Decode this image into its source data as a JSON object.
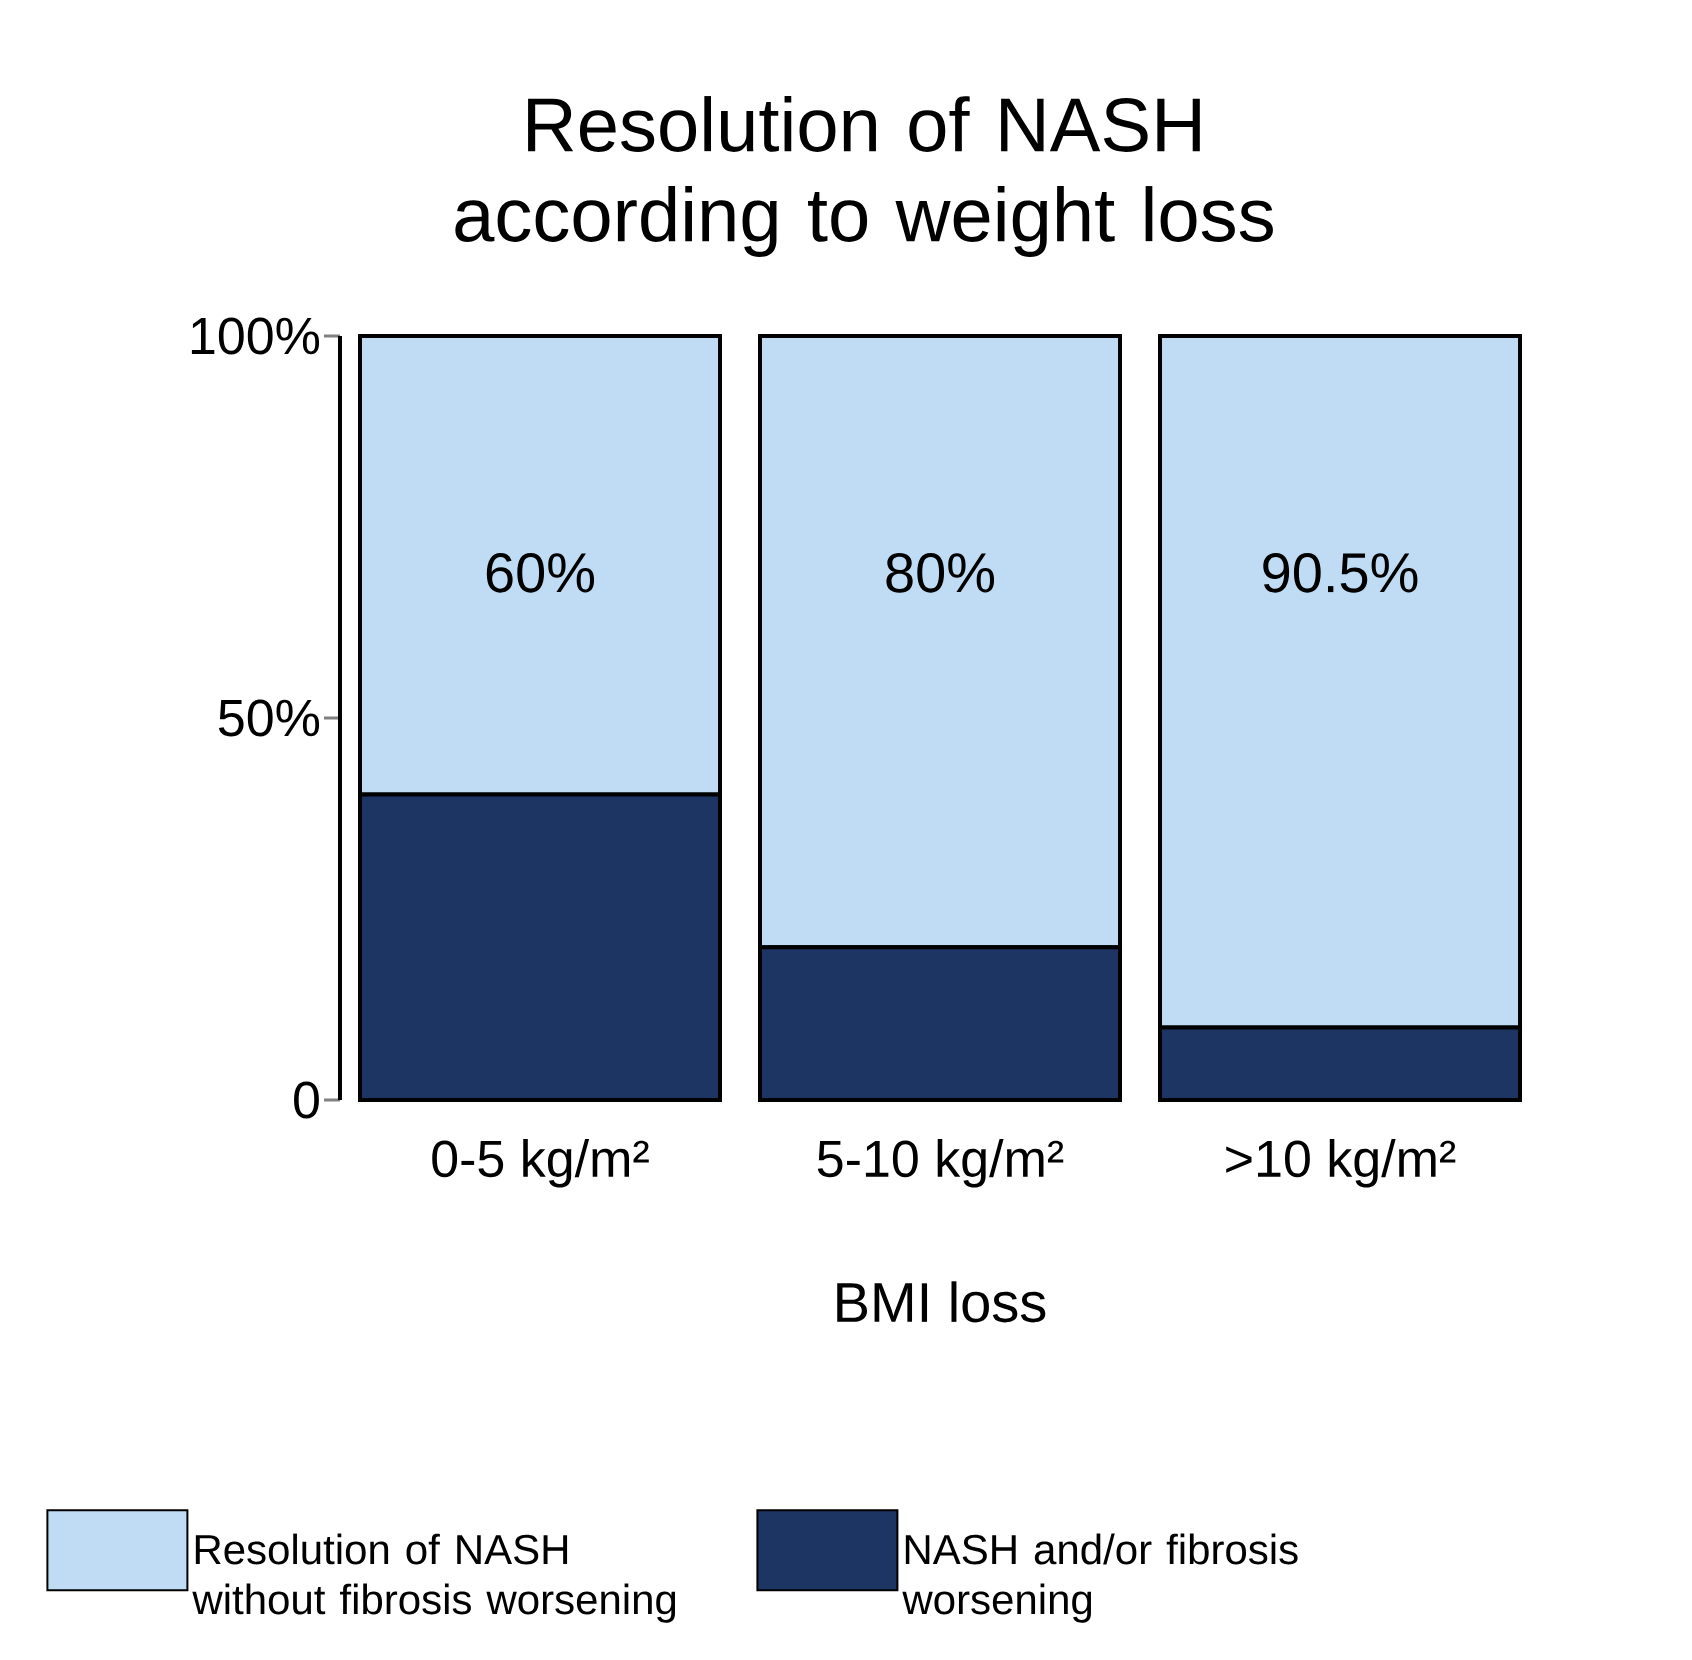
{
  "chart_data": {
    "type": "bar",
    "stacked": true,
    "title": "Resolution of NASH according to weight loss",
    "xlabel": "BMI loss",
    "categories": [
      "0-5 kg/m²",
      "5-10 kg/m²",
      ">10 kg/m²"
    ],
    "series": [
      {
        "name": "NASH and/or fibrosis worsening",
        "color": "#1c3563",
        "values": [
          40,
          20,
          9.5
        ]
      },
      {
        "name": "Resolution of NASH without fibrosis worsening",
        "color": "#c0dcf5",
        "values": [
          60,
          80,
          90.5
        ],
        "value_labels": [
          "60%",
          "80%",
          "90.5%"
        ]
      }
    ],
    "ylim": [
      0,
      100
    ],
    "yticks": [
      0,
      {
        "value": 50,
        "label": "50%"
      },
      {
        "value": 100,
        "label": "100%"
      }
    ],
    "grid": false,
    "legend": "bottom"
  }
}
